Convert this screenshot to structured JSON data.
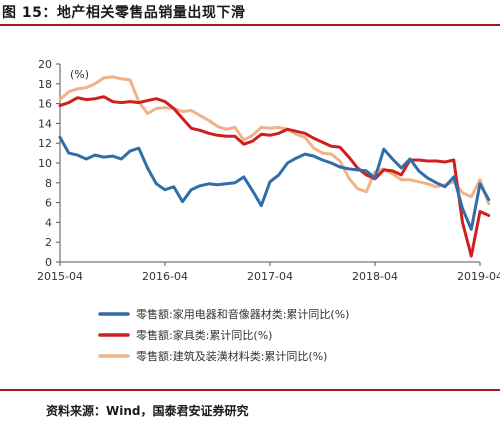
{
  "figure": {
    "title": "图 15：地产相关零售品销量出现下滑",
    "source": "资料来源：Wind，国泰君安证券研究"
  },
  "chart_data": {
    "type": "line",
    "unit_label": "(%)",
    "ylim": [
      0,
      20
    ],
    "yticks": [
      0,
      2,
      4,
      6,
      8,
      10,
      12,
      14,
      16,
      18,
      20
    ],
    "xlim": [
      "2015-04",
      "2019-04"
    ],
    "xticks": [
      "2015-04",
      "2016-04",
      "2017-04",
      "2018-04",
      "2019-04"
    ],
    "grid": false,
    "legend_position": "bottom",
    "series": [
      {
        "name": "零售额:家用电器和音像器材类:累计同比(%)",
        "color": "#2f6ea8",
        "points": [
          [
            "2015-04",
            12.6
          ],
          [
            "2015-05",
            11.0
          ],
          [
            "2015-06",
            10.8
          ],
          [
            "2015-07",
            10.4
          ],
          [
            "2015-08",
            10.8
          ],
          [
            "2015-09",
            10.6
          ],
          [
            "2015-10",
            10.7
          ],
          [
            "2015-11",
            10.4
          ],
          [
            "2015-12",
            11.2
          ],
          [
            "2016-01",
            11.5
          ],
          [
            "2016-02",
            9.5
          ],
          [
            "2016-03",
            7.9
          ],
          [
            "2016-04",
            7.3
          ],
          [
            "2016-05",
            7.6
          ],
          [
            "2016-06",
            6.1
          ],
          [
            "2016-07",
            7.3
          ],
          [
            "2016-08",
            7.7
          ],
          [
            "2016-09",
            7.9
          ],
          [
            "2016-10",
            7.8
          ],
          [
            "2016-11",
            7.9
          ],
          [
            "2016-12",
            8.0
          ],
          [
            "2017-01",
            8.6
          ],
          [
            "2017-02",
            7.2
          ],
          [
            "2017-03",
            5.7
          ],
          [
            "2017-04",
            8.1
          ],
          [
            "2017-05",
            8.8
          ],
          [
            "2017-06",
            10.0
          ],
          [
            "2017-07",
            10.5
          ],
          [
            "2017-08",
            10.9
          ],
          [
            "2017-09",
            10.7
          ],
          [
            "2017-10",
            10.3
          ],
          [
            "2017-11",
            10.0
          ],
          [
            "2017-12",
            9.6
          ],
          [
            "2018-01",
            9.4
          ],
          [
            "2018-02",
            9.3
          ],
          [
            "2018-03",
            9.2
          ],
          [
            "2018-04",
            8.5
          ],
          [
            "2018-05",
            11.4
          ],
          [
            "2018-06",
            10.4
          ],
          [
            "2018-07",
            9.5
          ],
          [
            "2018-08",
            10.4
          ],
          [
            "2018-09",
            9.2
          ],
          [
            "2018-10",
            8.5
          ],
          [
            "2018-11",
            8.0
          ],
          [
            "2018-12",
            7.6
          ],
          [
            "2019-01",
            8.6
          ],
          [
            "2019-02",
            5.4
          ],
          [
            "2019-03",
            3.3
          ],
          [
            "2019-04",
            7.9
          ],
          [
            "2019-05",
            6.3
          ]
        ]
      },
      {
        "name": "零售额:家具类:累计同比(%)",
        "color": "#d01f1f",
        "points": [
          [
            "2015-04",
            15.8
          ],
          [
            "2015-05",
            16.1
          ],
          [
            "2015-06",
            16.6
          ],
          [
            "2015-07",
            16.4
          ],
          [
            "2015-08",
            16.5
          ],
          [
            "2015-09",
            16.7
          ],
          [
            "2015-10",
            16.2
          ],
          [
            "2015-11",
            16.1
          ],
          [
            "2015-12",
            16.2
          ],
          [
            "2016-01",
            16.1
          ],
          [
            "2016-02",
            16.3
          ],
          [
            "2016-03",
            16.5
          ],
          [
            "2016-04",
            16.2
          ],
          [
            "2016-05",
            15.5
          ],
          [
            "2016-06",
            14.5
          ],
          [
            "2016-07",
            13.5
          ],
          [
            "2016-08",
            13.3
          ],
          [
            "2016-09",
            13.0
          ],
          [
            "2016-10",
            12.8
          ],
          [
            "2016-11",
            12.7
          ],
          [
            "2016-12",
            12.7
          ],
          [
            "2017-01",
            11.9
          ],
          [
            "2017-02",
            12.2
          ],
          [
            "2017-03",
            12.9
          ],
          [
            "2017-04",
            12.8
          ],
          [
            "2017-05",
            13.0
          ],
          [
            "2017-06",
            13.4
          ],
          [
            "2017-07",
            13.2
          ],
          [
            "2017-08",
            13.0
          ],
          [
            "2017-09",
            12.5
          ],
          [
            "2017-10",
            12.1
          ],
          [
            "2017-11",
            11.7
          ],
          [
            "2017-12",
            11.6
          ],
          [
            "2018-01",
            10.6
          ],
          [
            "2018-02",
            9.5
          ],
          [
            "2018-03",
            8.8
          ],
          [
            "2018-04",
            8.4
          ],
          [
            "2018-05",
            9.3
          ],
          [
            "2018-06",
            9.2
          ],
          [
            "2018-07",
            8.8
          ],
          [
            "2018-08",
            10.3
          ],
          [
            "2018-09",
            10.3
          ],
          [
            "2018-10",
            10.2
          ],
          [
            "2018-11",
            10.2
          ],
          [
            "2018-12",
            10.1
          ],
          [
            "2019-01",
            10.3
          ],
          [
            "2019-02",
            4.0
          ],
          [
            "2019-03",
            0.6
          ],
          [
            "2019-04",
            5.1
          ],
          [
            "2019-05",
            4.7
          ]
        ]
      },
      {
        "name": "零售额:建筑及装潢材料类:累计同比(%)",
        "color": "#f0b287",
        "points": [
          [
            "2015-04",
            16.4
          ],
          [
            "2015-05",
            17.2
          ],
          [
            "2015-06",
            17.5
          ],
          [
            "2015-07",
            17.6
          ],
          [
            "2015-08",
            18.0
          ],
          [
            "2015-09",
            18.6
          ],
          [
            "2015-10",
            18.7
          ],
          [
            "2015-11",
            18.5
          ],
          [
            "2015-12",
            18.4
          ],
          [
            "2016-01",
            16.2
          ],
          [
            "2016-02",
            15.0
          ],
          [
            "2016-03",
            15.5
          ],
          [
            "2016-04",
            15.6
          ],
          [
            "2016-05",
            15.5
          ],
          [
            "2016-06",
            15.2
          ],
          [
            "2016-07",
            15.3
          ],
          [
            "2016-08",
            14.8
          ],
          [
            "2016-09",
            14.3
          ],
          [
            "2016-10",
            13.7
          ],
          [
            "2016-11",
            13.4
          ],
          [
            "2016-12",
            13.6
          ],
          [
            "2017-01",
            12.3
          ],
          [
            "2017-02",
            12.8
          ],
          [
            "2017-03",
            13.6
          ],
          [
            "2017-04",
            13.5
          ],
          [
            "2017-05",
            13.6
          ],
          [
            "2017-06",
            13.4
          ],
          [
            "2017-07",
            12.9
          ],
          [
            "2017-08",
            12.6
          ],
          [
            "2017-09",
            11.5
          ],
          [
            "2017-10",
            11.0
          ],
          [
            "2017-11",
            10.9
          ],
          [
            "2017-12",
            10.2
          ],
          [
            "2018-01",
            8.5
          ],
          [
            "2018-02",
            7.4
          ],
          [
            "2018-03",
            7.1
          ],
          [
            "2018-04",
            9.1
          ],
          [
            "2018-05",
            9.4
          ],
          [
            "2018-06",
            8.9
          ],
          [
            "2018-07",
            8.3
          ],
          [
            "2018-08",
            8.3
          ],
          [
            "2018-09",
            8.1
          ],
          [
            "2018-10",
            7.9
          ],
          [
            "2018-11",
            7.6
          ],
          [
            "2018-12",
            7.8
          ],
          [
            "2019-01",
            8.1
          ],
          [
            "2019-02",
            7.0
          ],
          [
            "2019-03",
            6.6
          ],
          [
            "2019-04",
            8.3
          ],
          [
            "2019-05",
            5.9
          ]
        ]
      }
    ]
  }
}
